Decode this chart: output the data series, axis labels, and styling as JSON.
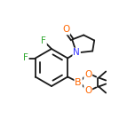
{
  "bg_color": "#ffffff",
  "bond_color": "#1a1a1a",
  "atom_colors": {
    "F": "#33aa33",
    "O": "#ff6600",
    "N": "#3333ff",
    "B": "#ff6600",
    "C": "#1a1a1a"
  },
  "figsize": [
    1.52,
    1.52
  ],
  "dpi": 100,
  "lw": 1.3,
  "fontsize": 7.5
}
